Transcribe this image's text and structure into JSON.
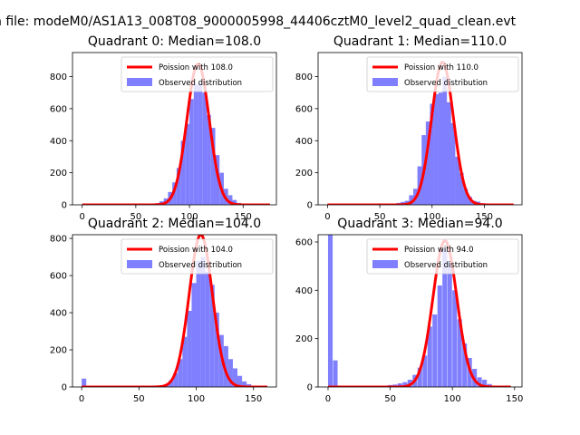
{
  "figure": {
    "suptitle": "n file: modeM0/AS1A13_008T08_9000005998_44406cztM0_level2_quad_clean.evt"
  },
  "colors": {
    "histogram": "#8080ff",
    "poisson_line": "#ff0000",
    "poisson_line_alpha": "#ff8a8a"
  },
  "chart_data": [
    {
      "type": "bar",
      "title": "Quadrant 0: Median=108.0",
      "legend": [
        "Poission with 108.0",
        "Observed distribution"
      ],
      "legend_position": "top-right",
      "xlim": [
        -9,
        181
      ],
      "ylim": [
        0,
        950
      ],
      "xticks": [
        0,
        50,
        100,
        150
      ],
      "yticks": [
        0,
        200,
        400,
        600,
        800
      ],
      "bin_width": 4.0,
      "hist_x": [
        68,
        72,
        76,
        80,
        84,
        88,
        92,
        96,
        100,
        104,
        108,
        112,
        116,
        120,
        124,
        128,
        132,
        136,
        140,
        144,
        148
      ],
      "hist_y": [
        10,
        22,
        40,
        80,
        140,
        230,
        400,
        505,
        660,
        750,
        760,
        700,
        560,
        480,
        310,
        200,
        100,
        60,
        30,
        12,
        5
      ],
      "poisson_mean": 108.0,
      "poisson_peak": 880,
      "poisson_x_range": [
        0,
        175
      ]
    },
    {
      "type": "bar",
      "title": "Quadrant 1: Median=110.0",
      "legend": [
        "Poission with 110.0",
        "Observed distribution"
      ],
      "legend_position": "top-right",
      "xlim": [
        -9,
        186
      ],
      "ylim": [
        0,
        950
      ],
      "xticks": [
        0,
        50,
        100,
        150
      ],
      "yticks": [
        0,
        200,
        400,
        600,
        800
      ],
      "bin_width": 4.2,
      "hist_x": [
        58,
        62,
        66,
        70,
        74,
        78,
        82,
        86,
        90,
        94,
        98,
        102,
        106,
        110,
        114,
        118,
        122,
        126,
        130,
        134,
        138,
        142,
        146,
        150
      ],
      "hist_y": [
        3,
        8,
        12,
        18,
        25,
        60,
        100,
        240,
        435,
        520,
        630,
        690,
        700,
        800,
        640,
        510,
        300,
        200,
        100,
        50,
        25,
        20,
        10,
        5
      ],
      "poisson_mean": 110.0,
      "poisson_peak": 890,
      "poisson_x_range": [
        0,
        178
      ]
    },
    {
      "type": "bar",
      "title": "Quadrant 2: Median=104.0",
      "legend": [
        "Poission with 104.0",
        "Observed distribution"
      ],
      "legend_position": "top-right",
      "xlim": [
        -8,
        170
      ],
      "ylim": [
        0,
        820
      ],
      "xticks": [
        0,
        50,
        100,
        150
      ],
      "yticks": [
        0,
        200,
        400,
        600,
        800
      ],
      "bin_width": 4.0,
      "hist_x": [
        0,
        68,
        72,
        76,
        80,
        84,
        88,
        92,
        96,
        100,
        104,
        108,
        112,
        116,
        120,
        124,
        128,
        132,
        136,
        140,
        144,
        148
      ],
      "hist_y": [
        45,
        6,
        15,
        35,
        75,
        150,
        270,
        410,
        560,
        680,
        700,
        620,
        550,
        400,
        280,
        220,
        150,
        100,
        60,
        30,
        15,
        5
      ],
      "poisson_mean": 104.0,
      "poisson_peak": 820,
      "poisson_x_range": [
        0,
        162
      ]
    },
    {
      "type": "bar",
      "title": "Quadrant 3: Median=94.0",
      "legend": [
        "Poission with 94.0",
        "Observed distribution"
      ],
      "legend_position": "top-right",
      "xlim": [
        -8,
        156
      ],
      "ylim": [
        0,
        630
      ],
      "xticks": [
        0,
        50,
        100,
        150
      ],
      "yticks": [
        0,
        200,
        400,
        600
      ],
      "bin_width": 3.7,
      "hist_x": [
        0,
        4,
        40,
        44,
        48,
        52,
        56,
        60,
        64,
        68,
        72,
        76,
        80,
        84,
        88,
        92,
        96,
        100,
        104,
        108,
        112,
        116,
        120,
        124,
        128
      ],
      "hist_y": [
        630,
        110,
        3,
        5,
        8,
        10,
        15,
        20,
        30,
        50,
        80,
        130,
        250,
        300,
        420,
        570,
        520,
        400,
        280,
        180,
        120,
        75,
        40,
        30,
        12
      ],
      "poisson_mean": 94.0,
      "poisson_peak": 605,
      "poisson_x_range": [
        0,
        147
      ]
    }
  ]
}
